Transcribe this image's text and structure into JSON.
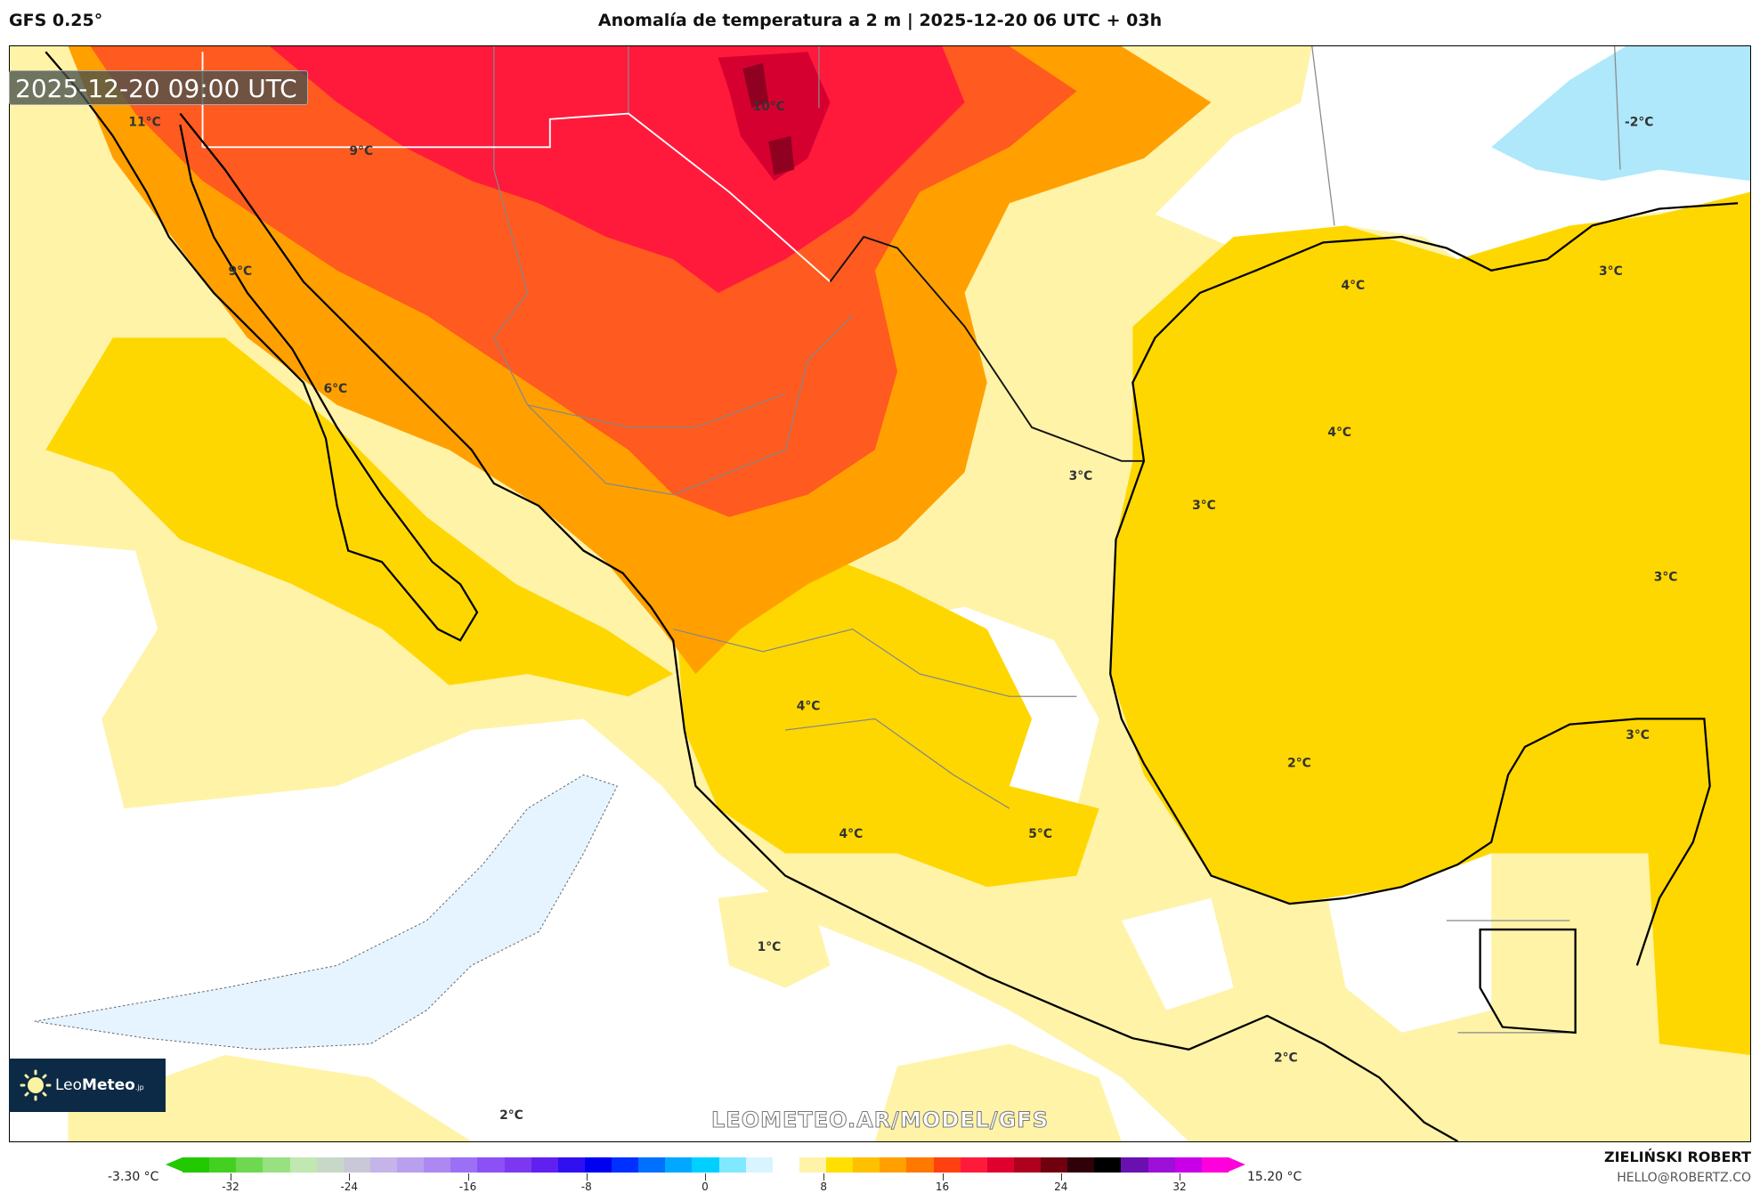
{
  "header": {
    "model": "GFS 0.25°",
    "title": "Anomalía de temperatura a 2 m | 2025-12-20 06 UTC + 03h"
  },
  "map": {
    "valid_time": "2025-12-20 09:00 UTC",
    "watermark": "LEOMETEO.AR/MODEL/GFS",
    "logo": {
      "text_light": "Leo",
      "text_bold": "Meteo",
      "suffix": ".jp",
      "icon": "sun-icon"
    },
    "labels": [
      {
        "text": "11°C"
      },
      {
        "text": "9°C"
      },
      {
        "text": "10°C"
      },
      {
        "text": "9°C"
      },
      {
        "text": "6°C"
      },
      {
        "text": "-2°C"
      },
      {
        "text": "4°C"
      },
      {
        "text": "3°C"
      },
      {
        "text": "4°C"
      },
      {
        "text": "3°C"
      },
      {
        "text": "3°C"
      },
      {
        "text": "3°C"
      },
      {
        "text": "4°C"
      },
      {
        "text": "2°C"
      },
      {
        "text": "3°C"
      },
      {
        "text": "4°C"
      },
      {
        "text": "5°C"
      },
      {
        "text": "1°C"
      },
      {
        "text": "2°C"
      },
      {
        "text": "2°C"
      }
    ]
  },
  "colorbar": {
    "min_label": "-3.30 °C",
    "max_label": "15.20 °C",
    "ticks": [
      "-32",
      "-24",
      "-16",
      "-8",
      "0",
      "8",
      "16",
      "24",
      "32"
    ],
    "colors": [
      "#22c800",
      "#44d020",
      "#6ed850",
      "#98e080",
      "#c0e8b0",
      "#c8d8c8",
      "#c8c8d8",
      "#c4b4e8",
      "#b8a0ec",
      "#ac88f0",
      "#9c70f4",
      "#8c50f4",
      "#7c38f0",
      "#6020f0",
      "#3010f0",
      "#0000f0",
      "#0030ff",
      "#0070ff",
      "#00a8ff",
      "#00d0ff",
      "#80e8ff",
      "#d8f4ff",
      "#ffffff",
      "#fff3a8",
      "#ffe000",
      "#ffc000",
      "#ffa000",
      "#ff7800",
      "#ff4010",
      "#ff1a3c",
      "#e00030",
      "#b00020",
      "#700010",
      "#300008",
      "#000000",
      "#6a10b0",
      "#9c10d8",
      "#c800e8",
      "#ff00dd"
    ]
  },
  "credits": {
    "author": "ZIELIŃSKI ROBERT",
    "email": "HELLO@ROBERTZ.CO"
  }
}
